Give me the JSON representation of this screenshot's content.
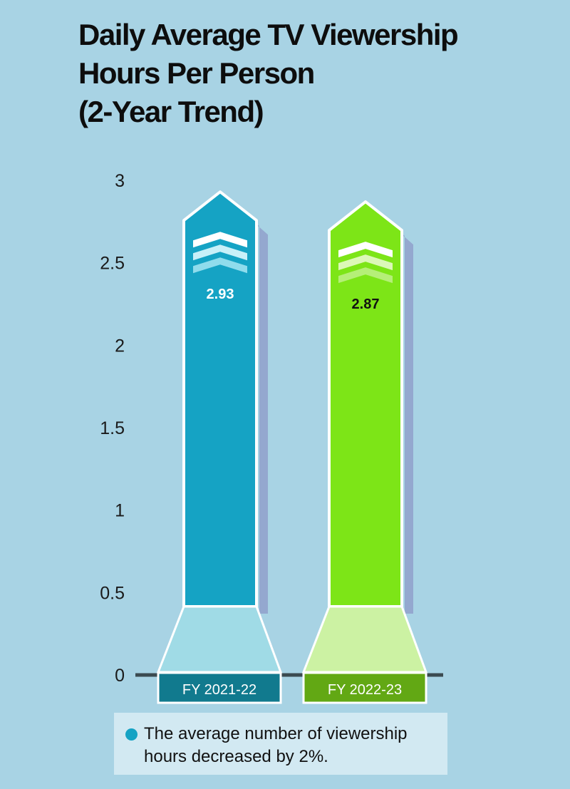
{
  "title": [
    "Daily Average TV Viewership",
    "Hours Per Person",
    "(2-Year Trend)"
  ],
  "note": {
    "text": "The average number of viewership hours decreased by 2%.",
    "bullet_color": "#15a3c4"
  },
  "chart_data": {
    "type": "bar",
    "title": "Daily Average TV Viewership Hours Per Person (2-Year Trend)",
    "categories": [
      "FY 2021-22",
      "FY 2022-23"
    ],
    "values": [
      2.93,
      2.87
    ],
    "value_labels": [
      "2.93",
      "2.87"
    ],
    "ylim": [
      0,
      3
    ],
    "yticks": [
      0,
      0.5,
      1,
      1.5,
      2,
      2.5,
      3
    ],
    "ytick_labels": [
      "0",
      "0.5",
      "1",
      "1.5",
      "2",
      "2.5",
      "3"
    ],
    "xlabel": "",
    "ylabel": "",
    "grid": false,
    "legend": "none",
    "colors": {
      "bar": [
        "#15a3c4",
        "#7de517"
      ],
      "base": [
        "#a0dbe6",
        "#ccf2a3"
      ],
      "label_box": [
        "#117a8e",
        "#62a814"
      ],
      "value_text": [
        "#ffffff",
        "#111111"
      ],
      "shadow": "#94a8cf",
      "chevrons": [
        "#ffffff",
        "#c8f0f8",
        "#8fdcec"
      ],
      "chevrons_green": [
        "#ffffff",
        "#dcf8b8",
        "#b5ef78"
      ],
      "axis_baseline": "#3b4a50"
    }
  }
}
